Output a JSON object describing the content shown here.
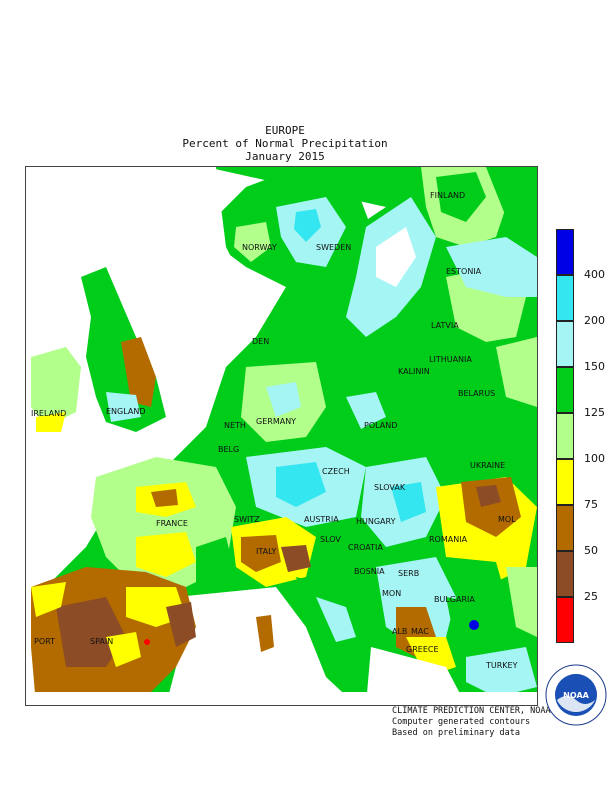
{
  "title": {
    "line1": "EUROPE",
    "line2": "Percent of Normal Precipitation",
    "line3": "January 2015"
  },
  "legend": {
    "levels": [
      {
        "label": "400",
        "color": "#0000e6"
      },
      {
        "label": "200",
        "color": "#33e6f0"
      },
      {
        "label": "150",
        "color": "#a6f5f5"
      },
      {
        "label": "125",
        "color": "#00cc1a"
      },
      {
        "label": "100",
        "color": "#b3ff8c"
      },
      {
        "label": "75",
        "color": "#ffff00"
      },
      {
        "label": "50",
        "color": "#b36b00"
      },
      {
        "label": "25",
        "color": "#8c4d26"
      },
      {
        "label": "",
        "color": "#ff0000"
      }
    ]
  },
  "countries": [
    {
      "name": "FINLAND"
    },
    {
      "name": "NORWAY"
    },
    {
      "name": "SWEDEN"
    },
    {
      "name": "ESTONIA"
    },
    {
      "name": "LATVIA"
    },
    {
      "name": "DEN"
    },
    {
      "name": "LITHUANIA"
    },
    {
      "name": "KALININ"
    },
    {
      "name": "BELARUS"
    },
    {
      "name": "IRELAND"
    },
    {
      "name": "ENGLAND"
    },
    {
      "name": "NETH"
    },
    {
      "name": "GERMANY"
    },
    {
      "name": "POLAND"
    },
    {
      "name": "BELG"
    },
    {
      "name": "CZECH"
    },
    {
      "name": "UKRAINE"
    },
    {
      "name": "SLOVAK"
    },
    {
      "name": "FRANCE"
    },
    {
      "name": "SWITZ"
    },
    {
      "name": "AUSTRIA"
    },
    {
      "name": "HUNGARY"
    },
    {
      "name": "MOL"
    },
    {
      "name": "ROMANIA"
    },
    {
      "name": "SLOV"
    },
    {
      "name": "CROATIA"
    },
    {
      "name": "ITALY"
    },
    {
      "name": "BOSNIA"
    },
    {
      "name": "SERB"
    },
    {
      "name": "MON"
    },
    {
      "name": "BULGARIA"
    },
    {
      "name": "PORT"
    },
    {
      "name": "SPAIN"
    },
    {
      "name": "ALB"
    },
    {
      "name": "MAC"
    },
    {
      "name": "GREECE"
    },
    {
      "name": "TURKEY"
    }
  ],
  "credits": {
    "line1": "CLIMATE PREDICTION CENTER, NOAA",
    "line2": "Computer generated contours",
    "line3": "Based on preliminary data"
  },
  "logo": {
    "text": "NOAA",
    "ring_top": "NATIONAL OCEANIC AND ATMOSPHERIC ADMINISTRATION",
    "ring_bottom": "U.S. DEPARTMENT OF COMMERCE"
  }
}
